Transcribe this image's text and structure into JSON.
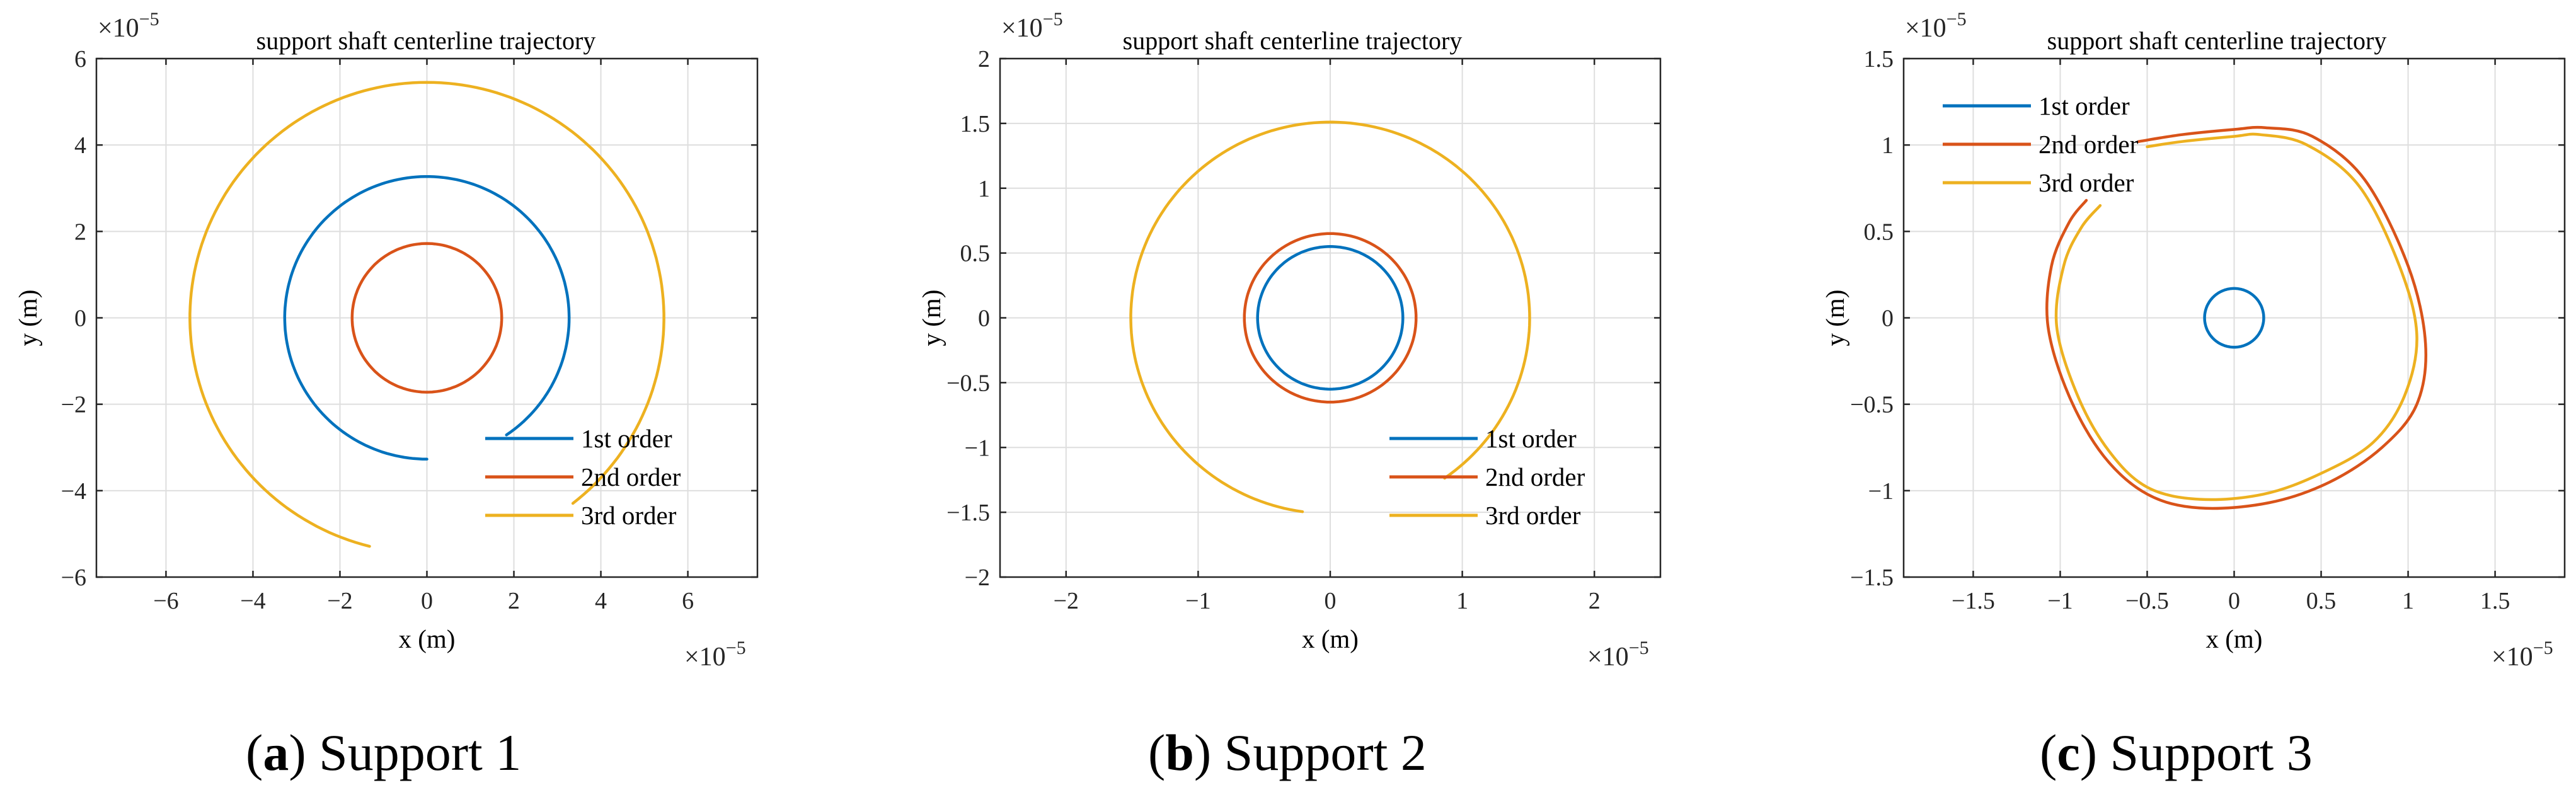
{
  "figure": {
    "colors": {
      "s1": "#0072BD",
      "s2": "#D95319",
      "s3": "#EDB120"
    }
  },
  "chart_data": [
    {
      "type": "line",
      "panel": "a",
      "title": "support shaft centerline trajectory",
      "xlabel": "x (m)",
      "ylabel": "y (m)",
      "xlim": [
        -7.6,
        7.6
      ],
      "ylim": [
        -6,
        6
      ],
      "xticks": [
        -6,
        -4,
        -2,
        0,
        2,
        4,
        6
      ],
      "yticks": [
        -6,
        -4,
        -2,
        0,
        2,
        4,
        6
      ],
      "xtick_labels": [
        "−6",
        "−4",
        "−2",
        "0",
        "2",
        "4",
        "6"
      ],
      "ytick_labels": [
        "−6",
        "−4",
        "−2",
        "0",
        "2",
        "4",
        "6"
      ],
      "multiplier": {
        "base": "×10",
        "exp": "−5"
      },
      "grid": true,
      "legend_position": "bottom-right",
      "caption": {
        "letter": "a",
        "text": " Support 1"
      },
      "series": [
        {
          "name": "1st order",
          "shape": "arc",
          "cx": 0,
          "cy": 0,
          "r": 3.27,
          "from_deg": -56,
          "to_deg": 270
        },
        {
          "name": "2nd order",
          "shape": "circle",
          "cx": 0,
          "cy": 0,
          "r": 1.72
        },
        {
          "name": "3rd order",
          "shape": "arc",
          "cx": 0,
          "cy": 0,
          "r": 5.45,
          "from_deg": -52,
          "to_deg": 256
        }
      ]
    },
    {
      "type": "line",
      "panel": "b",
      "title": "support shaft centerline trajectory",
      "xlabel": "x (m)",
      "ylabel": "y (m)",
      "xlim": [
        -2.5,
        2.5
      ],
      "ylim": [
        -2,
        2
      ],
      "xticks": [
        -2,
        -1,
        0,
        1,
        2
      ],
      "yticks": [
        -2,
        -1.5,
        -1,
        -0.5,
        0,
        0.5,
        1,
        1.5,
        2
      ],
      "xtick_labels": [
        "−2",
        "−1",
        "0",
        "1",
        "2"
      ],
      "ytick_labels": [
        "−2",
        "−1.5",
        "−1",
        "−0.5",
        "0",
        "0.5",
        "1",
        "1.5",
        "2"
      ],
      "multiplier": {
        "base": "×10",
        "exp": "−5"
      },
      "grid": true,
      "legend_position": "bottom-right",
      "caption": {
        "letter": "b",
        "text": " Support 2"
      },
      "series": [
        {
          "name": "1st order",
          "shape": "circle",
          "cx": 0,
          "cy": 0,
          "r": 0.55
        },
        {
          "name": "2nd order",
          "shape": "circle",
          "cx": 0,
          "cy": 0,
          "r": 0.65
        },
        {
          "name": "3rd order",
          "shape": "arc",
          "cx": 0,
          "cy": 0,
          "r": 1.51,
          "from_deg": -55,
          "to_deg": 262
        }
      ]
    },
    {
      "type": "line",
      "panel": "c",
      "title": "support shaft centerline trajectory",
      "xlabel": "x (m)",
      "ylabel": "y (m)",
      "xlim": [
        -1.9,
        1.9
      ],
      "ylim": [
        -1.5,
        1.5
      ],
      "xticks": [
        -1.5,
        -1,
        -0.5,
        0,
        0.5,
        1,
        1.5
      ],
      "yticks": [
        -1.5,
        -1,
        -0.5,
        0,
        0.5,
        1,
        1.5
      ],
      "xtick_labels": [
        "−1.5",
        "−1",
        "−0.5",
        "0",
        "0.5",
        "1",
        "1.5"
      ],
      "ytick_labels": [
        "−1.5",
        "−1",
        "−0.5",
        "0",
        "0.5",
        "1",
        "1.5"
      ],
      "multiplier": {
        "base": "×10",
        "exp": "−5"
      },
      "grid": true,
      "legend_position": "top-left",
      "caption": {
        "letter": "c",
        "text": " Support 3"
      },
      "series": [
        {
          "name": "1st order",
          "shape": "circle",
          "cx": 0,
          "cy": 0,
          "r": 0.17
        },
        {
          "name": "2nd order",
          "shape": "points",
          "x": [
            -0.55,
            -0.3,
            0.0,
            0.18,
            0.45,
            0.75,
            1.0,
            1.1,
            1.05,
            0.85,
            0.55,
            0.2,
            -0.2,
            -0.5,
            -0.75,
            -0.95,
            -1.07,
            -1.05,
            -0.95,
            -0.85
          ],
          "y": [
            1.02,
            1.06,
            1.09,
            1.1,
            1.05,
            0.8,
            0.3,
            -0.15,
            -0.5,
            -0.75,
            -0.95,
            -1.07,
            -1.1,
            -1.02,
            -0.8,
            -0.45,
            -0.05,
            0.3,
            0.55,
            0.68
          ]
        },
        {
          "name": "3rd order",
          "shape": "points",
          "x": [
            -0.5,
            -0.3,
            0.0,
            0.15,
            0.42,
            0.72,
            0.95,
            1.05,
            0.98,
            0.8,
            0.5,
            0.17,
            -0.2,
            -0.5,
            -0.72,
            -0.9,
            -1.02,
            -0.98,
            -0.88,
            -0.77
          ],
          "y": [
            0.99,
            1.02,
            1.05,
            1.06,
            1.0,
            0.76,
            0.3,
            -0.1,
            -0.45,
            -0.72,
            -0.9,
            -1.02,
            -1.05,
            -0.98,
            -0.77,
            -0.45,
            -0.05,
            0.3,
            0.52,
            0.65
          ]
        }
      ]
    }
  ]
}
